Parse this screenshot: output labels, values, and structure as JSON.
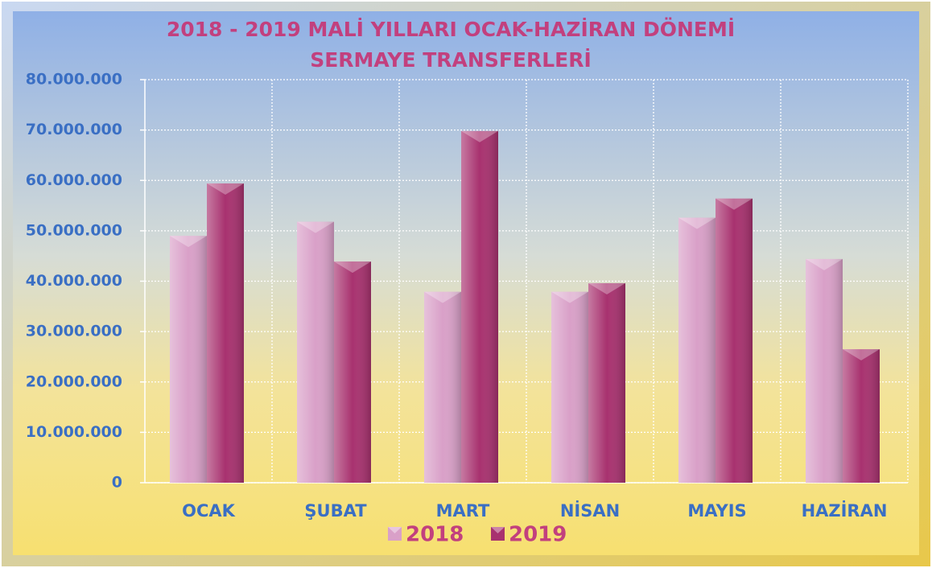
{
  "chart_data": {
    "type": "bar",
    "title": "2018 - 2019 MALİ YILLARI OCAK-HAZİRAN DÖNEMİ",
    "subtitle": "SERMAYE TRANSFERLERİ",
    "categories": [
      "OCAK",
      "ŞUBAT",
      "MART",
      "NİSAN",
      "MAYIS",
      "HAZİRAN"
    ],
    "series": [
      {
        "name": "2018",
        "color": "#d9a0c8",
        "values": [
          49000000,
          51800000,
          37900000,
          37900000,
          52600000,
          44400000
        ]
      },
      {
        "name": "2019",
        "color": "#a8326f",
        "values": [
          59400000,
          43900000,
          69800000,
          39600000,
          56400000,
          26500000
        ]
      }
    ],
    "ylim": [
      0,
      80000000
    ],
    "yticks": [
      0,
      {
        "value": 10000000,
        "label": "10.000.000"
      },
      {
        "value": 20000000,
        "label": "20.000.000"
      },
      {
        "value": 30000000,
        "label": "30.000.000"
      },
      {
        "value": 40000000,
        "label": "40.000.000"
      },
      {
        "value": 50000000,
        "label": "50.000.000"
      },
      {
        "value": 60000000,
        "label": "60.000.000"
      },
      {
        "value": 70000000,
        "label": "70.000.000"
      },
      {
        "value": 80000000,
        "label": "80.000.000"
      }
    ],
    "grid": true,
    "legend": "bottom"
  }
}
